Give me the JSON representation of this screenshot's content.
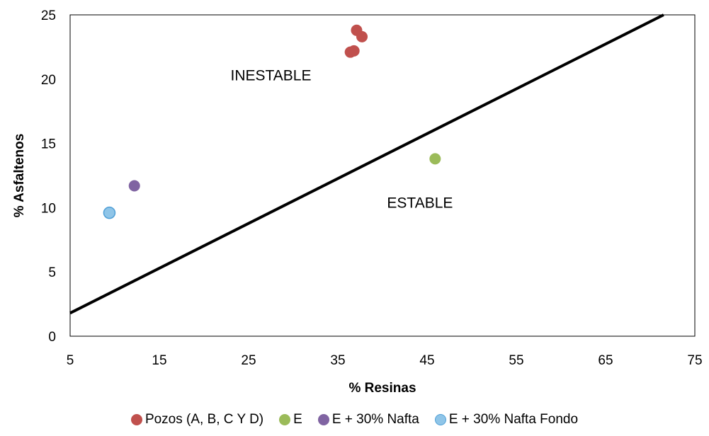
{
  "chart_data": {
    "type": "scatter",
    "xlabel": "% Resinas",
    "ylabel": "% Asfaltenos",
    "xlim": [
      5,
      75
    ],
    "ylim": [
      0,
      25
    ],
    "xticks": [
      5,
      15,
      25,
      35,
      45,
      55,
      65,
      75
    ],
    "yticks": [
      0,
      5,
      10,
      15,
      20,
      25
    ],
    "grid": false,
    "legend_position": "bottom",
    "series": [
      {
        "name": "Pozos (A, B, C Y D)",
        "color": "#c0504d",
        "points": [
          [
            37.1,
            23.8
          ],
          [
            37.7,
            23.3
          ],
          [
            36.8,
            22.2
          ],
          [
            36.4,
            22.1
          ]
        ]
      },
      {
        "name": "E",
        "color": "#9bbb59",
        "points": [
          [
            45.9,
            13.8
          ]
        ]
      },
      {
        "name": "E + 30% Nafta",
        "color": "#8064a2",
        "points": [
          [
            12.2,
            11.7
          ]
        ]
      },
      {
        "name": "E + 30% Nafta Fondo",
        "color": "#8fc5e8",
        "stroke": "#4f9fd6",
        "points": [
          [
            9.4,
            9.6
          ]
        ]
      }
    ],
    "stability_line": {
      "points": [
        [
          5,
          1.8
        ],
        [
          71.5,
          25
        ]
      ],
      "color": "#000000"
    },
    "annotations": [
      {
        "text": "INESTABLE",
        "x": 27.5,
        "y": 19.9
      },
      {
        "text": "ESTABLE",
        "x": 44.2,
        "y": 10.0
      }
    ]
  }
}
